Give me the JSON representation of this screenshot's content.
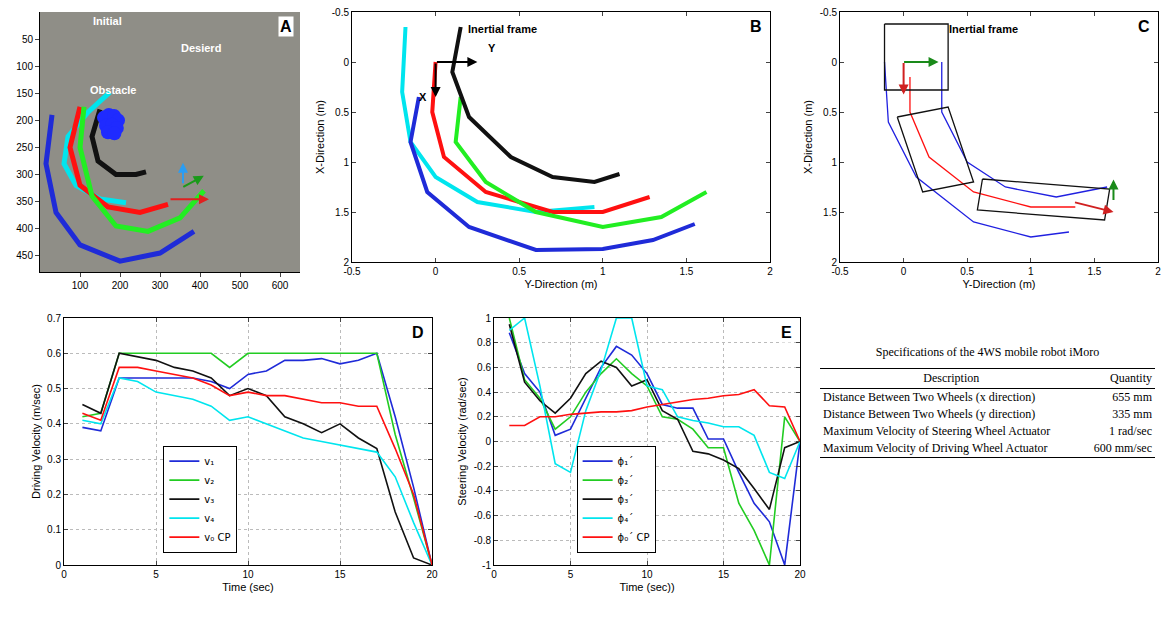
{
  "chart_data": [
    {
      "panel_label": "A",
      "type": "line",
      "grid": false,
      "xlim": [
        0,
        650
      ],
      "xticks": [
        100,
        200,
        300,
        400,
        500,
        600
      ],
      "ylim": [
        480,
        0
      ],
      "yticks": [
        50,
        100,
        150,
        200,
        250,
        300,
        350,
        400,
        450
      ],
      "annotations": [
        "Initial",
        "Obstacle",
        "Desierd"
      ],
      "series": [
        {
          "type": "line",
          "color": "#00e5ee",
          "line_style": "solid",
          "x": [
            175,
            120,
            70,
            60,
            90,
            150,
            215
          ],
          "values": [
            148,
            185,
            230,
            280,
            320,
            345,
            352
          ]
        },
        {
          "type": "line",
          "color": "#1f2bd8",
          "line_style": "solid",
          "x": [
            30,
            15,
            40,
            100,
            200,
            300,
            385
          ],
          "values": [
            190,
            280,
            370,
            430,
            460,
            445,
            405
          ]
        },
        {
          "type": "line",
          "color": "#ff1010",
          "line_style": "solid",
          "x": [
            100,
            75,
            100,
            170,
            250,
            320
          ],
          "values": [
            175,
            250,
            320,
            360,
            370,
            355
          ]
        },
        {
          "type": "line",
          "color": "#22ee22",
          "line_style": "solid",
          "x": [
            110,
            100,
            130,
            190,
            270,
            350,
            410
          ],
          "values": [
            175,
            250,
            340,
            395,
            405,
            380,
            330
          ]
        },
        {
          "type": "line",
          "color": "#111111",
          "line_style": "solid",
          "x": [
            150,
            130,
            145,
            190,
            240,
            265
          ],
          "values": [
            180,
            230,
            275,
            300,
            300,
            295
          ]
        },
        {
          "type": "scatter",
          "marker": "circle",
          "color": "#1f2bff",
          "x": [
            160,
            172,
            185,
            195,
            165,
            180,
            192,
            170,
            186
          ],
          "values": [
            195,
            190,
            192,
            200,
            210,
            208,
            214,
            222,
            224
          ]
        }
      ]
    },
    {
      "panel_label": "B",
      "type": "line",
      "grid": false,
      "x_label": "Y-Direction (m)",
      "y_label": "X-Direction (m)",
      "xlim": [
        -0.5,
        2
      ],
      "xticks": [
        -0.5,
        0,
        0.5,
        1,
        1.5,
        2
      ],
      "ylim": [
        2,
        -0.5
      ],
      "yticks": [
        -0.5,
        0,
        0.5,
        1,
        1.5,
        2
      ],
      "annotations": [
        "Inertial frame",
        "X",
        "Y"
      ],
      "series": [
        {
          "type": "line",
          "color": "#00e5ee",
          "line_style": "solid",
          "x": [
            -0.18,
            -0.2,
            -0.15,
            0,
            0.25,
            0.6,
            0.95
          ],
          "values": [
            -0.35,
            0.3,
            0.8,
            1.15,
            1.4,
            1.5,
            1.45
          ]
        },
        {
          "type": "line",
          "color": "#1f2bd8",
          "line_style": "solid",
          "x": [
            -0.1,
            -0.15,
            -0.05,
            0.2,
            0.6,
            1.0,
            1.3,
            1.55
          ],
          "values": [
            0.35,
            0.8,
            1.3,
            1.65,
            1.88,
            1.87,
            1.78,
            1.62
          ]
        },
        {
          "type": "line",
          "color": "#ff1010",
          "line_style": "solid",
          "x": [
            0,
            -0.02,
            0.05,
            0.3,
            0.7,
            1.0,
            1.28
          ],
          "values": [
            0,
            0.5,
            0.95,
            1.3,
            1.5,
            1.5,
            1.35
          ]
        },
        {
          "type": "line",
          "color": "#22ee22",
          "line_style": "solid",
          "x": [
            0.15,
            0.12,
            0.3,
            0.6,
            1.0,
            1.35,
            1.62
          ],
          "values": [
            0.35,
            0.8,
            1.2,
            1.5,
            1.65,
            1.55,
            1.3
          ]
        },
        {
          "type": "line",
          "color": "#111111",
          "line_style": "solid",
          "x": [
            0.15,
            0.1,
            0.2,
            0.45,
            0.7,
            0.95,
            1.1
          ],
          "values": [
            -0.35,
            0.1,
            0.55,
            0.95,
            1.15,
            1.2,
            1.12
          ]
        }
      ]
    },
    {
      "panel_label": "C",
      "type": "line",
      "grid": false,
      "x_label": "Y-Direction (m)",
      "y_label": "X-Direction (m)",
      "xlim": [
        -0.5,
        2
      ],
      "xticks": [
        -0.5,
        0,
        0.5,
        1,
        1.5,
        2
      ],
      "ylim": [
        2,
        -0.5
      ],
      "yticks": [
        -0.5,
        0,
        0.5,
        1,
        1.5,
        2
      ],
      "annotations": [
        "Inertial frame"
      ],
      "series": [
        {
          "type": "line",
          "color": "#2020e0",
          "line_style": "solid",
          "x": [
            -0.15,
            -0.12,
            0.1,
            0.55,
            1.0,
            1.3
          ],
          "values": [
            0.0,
            0.6,
            1.15,
            1.6,
            1.75,
            1.7
          ]
        },
        {
          "type": "line",
          "color": "#2020e0",
          "line_style": "solid",
          "x": [
            0.3,
            0.3,
            0.5,
            0.8,
            1.2,
            1.6
          ],
          "values": [
            0.0,
            0.5,
            1.0,
            1.25,
            1.35,
            1.25
          ]
        },
        {
          "type": "line",
          "color": "#ff1010",
          "line_style": "solid",
          "x": [
            0.05,
            0.05,
            0.2,
            0.55,
            1.0,
            1.35
          ],
          "values": [
            0.15,
            0.5,
            0.95,
            1.3,
            1.45,
            1.45
          ]
        },
        {
          "type": "line",
          "color": "#111111",
          "line_style": "solid",
          "x": [
            -0.15,
            0.35,
            0.35,
            -0.15,
            -0.15
          ],
          "values": [
            -0.38,
            -0.38,
            0.28,
            0.28,
            -0.38
          ]
        },
        {
          "type": "line",
          "color": "#111111",
          "line_style": "solid",
          "x": [
            -0.05,
            0.35,
            0.55,
            0.15,
            -0.05
          ],
          "values": [
            0.55,
            0.45,
            1.2,
            1.3,
            0.55
          ]
        },
        {
          "type": "line",
          "color": "#111111",
          "line_style": "solid",
          "x": [
            0.62,
            1.62,
            1.58,
            0.58,
            0.62
          ],
          "values": [
            1.17,
            1.27,
            1.58,
            1.48,
            1.17
          ]
        }
      ]
    },
    {
      "panel_label": "D",
      "type": "line",
      "grid": true,
      "legend": "lower center",
      "x_label": "Time (sec)",
      "y_label": "Driving Velocity (m/sec)",
      "xlim": [
        0,
        20
      ],
      "xticks": [
        0,
        5,
        10,
        15,
        20
      ],
      "ylim": [
        0,
        0.7
      ],
      "yticks": [
        0,
        0.1,
        0.2,
        0.3,
        0.4,
        0.5,
        0.6,
        0.7
      ],
      "x": [
        1,
        2,
        3,
        4,
        5,
        6,
        7,
        8,
        9,
        10,
        11,
        12,
        13,
        14,
        15,
        16,
        17,
        18,
        19,
        20
      ],
      "series": [
        {
          "name": "v₁",
          "color": "#1f2bd8",
          "line_style": "solid",
          "values": [
            0.39,
            0.38,
            0.53,
            0.53,
            0.53,
            0.53,
            0.53,
            0.52,
            0.5,
            0.54,
            0.55,
            0.58,
            0.58,
            0.585,
            0.57,
            0.58,
            0.6,
            0.42,
            0.22,
            0
          ]
        },
        {
          "name": "v₂",
          "color": "#22cc22",
          "line_style": "solid",
          "values": [
            0.42,
            0.43,
            0.6,
            0.6,
            0.6,
            0.6,
            0.6,
            0.6,
            0.56,
            0.6,
            0.6,
            0.6,
            0.6,
            0.6,
            0.6,
            0.6,
            0.6,
            0.37,
            0.19,
            0
          ]
        },
        {
          "name": "v₃",
          "color": "#111111",
          "line_style": "solid",
          "values": [
            0.455,
            0.43,
            0.6,
            0.59,
            0.58,
            0.56,
            0.55,
            0.53,
            0.48,
            0.5,
            0.48,
            0.42,
            0.4,
            0.375,
            0.4,
            0.36,
            0.33,
            0.15,
            0.02,
            0
          ]
        },
        {
          "name": "v₄",
          "color": "#00e5ee",
          "line_style": "solid",
          "values": [
            0.41,
            0.4,
            0.53,
            0.52,
            0.49,
            0.48,
            0.47,
            0.45,
            0.41,
            0.42,
            0.4,
            0.38,
            0.36,
            0.35,
            0.34,
            0.33,
            0.32,
            0.25,
            0.12,
            0
          ]
        },
        {
          "name": "v₀ CP",
          "color": "#ff1010",
          "line_style": "solid",
          "values": [
            0.43,
            0.41,
            0.56,
            0.56,
            0.55,
            0.54,
            0.53,
            0.51,
            0.48,
            0.49,
            0.48,
            0.48,
            0.47,
            0.46,
            0.46,
            0.45,
            0.45,
            0.33,
            0.2,
            0
          ]
        }
      ]
    },
    {
      "panel_label": "E",
      "type": "line",
      "grid": true,
      "legend": "lower center",
      "x_label": "Time (sec))",
      "y_label": "Steering Velocity (rad/sec)",
      "xlim": [
        0,
        20
      ],
      "xticks": [
        0,
        5,
        10,
        15,
        20
      ],
      "ylim": [
        -1,
        1
      ],
      "yticks": [
        -1,
        -0.8,
        -0.6,
        -0.4,
        -0.2,
        0,
        0.2,
        0.4,
        0.6,
        0.8,
        1
      ],
      "x": [
        1,
        2,
        3,
        4,
        5,
        6,
        7,
        8,
        9,
        10,
        11,
        12,
        13,
        14,
        15,
        16,
        17,
        18,
        19,
        20
      ],
      "series": [
        {
          "name": "ϕ₁´",
          "color": "#1f2bd8",
          "line_style": "solid",
          "values": [
            0.88,
            0.55,
            0.4,
            0.05,
            0.1,
            0.35,
            0.6,
            0.77,
            0.7,
            0.55,
            0.3,
            0.27,
            0.27,
            0.02,
            0.02,
            -0.25,
            -0.5,
            -0.65,
            -1,
            0
          ]
        },
        {
          "name": "ϕ₂´",
          "color": "#22cc22",
          "line_style": "solid",
          "values": [
            1,
            0.5,
            0.35,
            0.1,
            0.2,
            0.4,
            0.55,
            0.67,
            0.55,
            0.45,
            0.2,
            0.18,
            0.1,
            -0.05,
            -0.05,
            -0.5,
            -0.72,
            -1,
            0.2,
            0
          ]
        },
        {
          "name": "ϕ₃´",
          "color": "#111111",
          "line_style": "solid",
          "values": [
            0.95,
            0.48,
            0.33,
            0.23,
            0.35,
            0.55,
            0.65,
            0.6,
            0.45,
            0.5,
            0.25,
            0.18,
            -0.08,
            -0.1,
            -0.15,
            -0.22,
            -0.38,
            -0.55,
            -0.05,
            0
          ]
        },
        {
          "name": "ϕ₄´",
          "color": "#00e5ee",
          "line_style": "solid",
          "values": [
            0.9,
            1,
            0.45,
            -0.18,
            -0.25,
            0.25,
            0.58,
            1,
            1,
            0.45,
            0.42,
            0.2,
            0.17,
            0.15,
            0.12,
            0.12,
            0.05,
            -0.25,
            -0.3,
            0
          ]
        },
        {
          "name": "ϕ₀´ CP",
          "color": "#ff1010",
          "line_style": "solid",
          "values": [
            0.13,
            0.13,
            0.2,
            0.2,
            0.22,
            0.23,
            0.24,
            0.24,
            0.25,
            0.28,
            0.3,
            0.32,
            0.34,
            0.35,
            0.37,
            0.38,
            0.42,
            0.29,
            0.28,
            0
          ]
        }
      ]
    }
  ],
  "table": {
    "title": "Specifications of the 4WS mobile robot iMoro",
    "header": [
      "Description",
      "Quantity"
    ],
    "rows": [
      [
        "Distance Between Two Wheels (x direction)",
        "655 mm"
      ],
      [
        "Distance Between Two Wheels (y direction)",
        "335 mm"
      ],
      [
        "Maximum Velocity of Steering Wheel Actuator",
        "1 rad/sec"
      ],
      [
        "Maximum Velocity of Driving Wheel Actuator",
        "600 mm/sec"
      ]
    ]
  }
}
